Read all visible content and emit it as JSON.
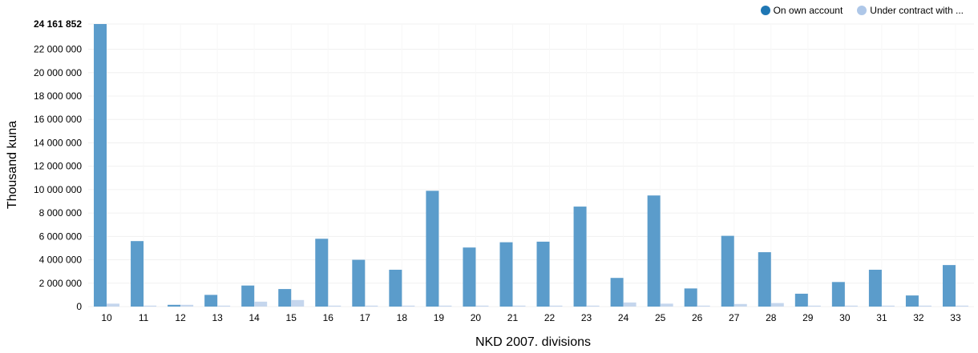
{
  "legend": {
    "own_label": "On own account",
    "contract_label": "Under contract with ..."
  },
  "colors": {
    "own_bar": "#5b9ccb",
    "contract_bar": "#c5d6ed",
    "own_legend": "#1f77b4",
    "contract_legend": "#aec7e8",
    "grid": "#f0f0f0"
  },
  "chart_data": {
    "type": "bar",
    "xlabel": "NKD 2007. divisions",
    "ylabel": "Thousand kuna",
    "ylim": [
      0,
      24161852
    ],
    "y_ticks": [
      0,
      2000000,
      4000000,
      6000000,
      8000000,
      10000000,
      12000000,
      14000000,
      16000000,
      18000000,
      20000000,
      22000000,
      24161852
    ],
    "y_tick_labels": [
      "0",
      "2 000 000",
      "4 000 000",
      "6 000 000",
      "8 000 000",
      "10 000 000",
      "12 000 000",
      "14 000 000",
      "16 000 000",
      "18 000 000",
      "20 000 000",
      "22 000 000",
      "24 161 852"
    ],
    "grid": true,
    "legend_position": "top-right",
    "categories": [
      "10",
      "11",
      "12",
      "13",
      "14",
      "15",
      "16",
      "17",
      "18",
      "19",
      "20",
      "21",
      "22",
      "23",
      "24",
      "25",
      "26",
      "27",
      "28",
      "29",
      "30",
      "31",
      "32",
      "33"
    ],
    "series": [
      {
        "name": "On own account",
        "values": [
          24161852,
          5600000,
          150000,
          1000000,
          1800000,
          1500000,
          5800000,
          4000000,
          3150000,
          9900000,
          5050000,
          5500000,
          5550000,
          8550000,
          2450000,
          9500000,
          1550000,
          6050000,
          4650000,
          1100000,
          2100000,
          3150000,
          950000,
          3550000
        ]
      },
      {
        "name": "Under contract with ...",
        "values": [
          250000,
          80000,
          150000,
          80000,
          420000,
          560000,
          80000,
          80000,
          80000,
          80000,
          80000,
          80000,
          80000,
          80000,
          350000,
          250000,
          80000,
          220000,
          300000,
          80000,
          80000,
          80000,
          80000,
          80000
        ]
      }
    ]
  }
}
